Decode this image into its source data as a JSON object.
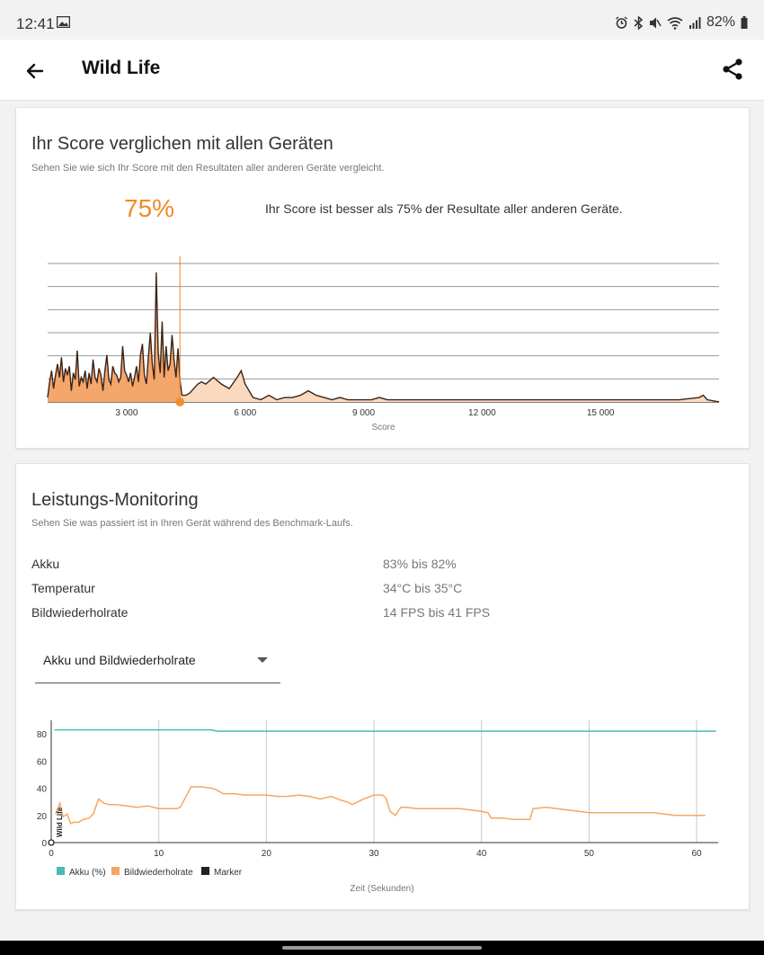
{
  "status_bar": {
    "time": "12:41",
    "battery": "82%"
  },
  "app_bar": {
    "title": "Wild Life"
  },
  "score_card": {
    "title": "Ihr Score verglichen mit allen Geräten",
    "subtitle": "Sehen Sie wie sich Ihr Score mit den Resultaten aller anderen Geräte vergleicht.",
    "percentile": "75%",
    "percentile_text": "Ihr Score ist besser als 75% der Resultate aller anderen Geräte."
  },
  "monitoring_card": {
    "title": "Leistungs-Monitoring",
    "subtitle": "Sehen Sie was passiert ist in Ihren Gerät während des Benchmark-Laufs.",
    "metrics": [
      {
        "label": "Akku",
        "value": "83% bis 82%"
      },
      {
        "label": "Temperatur",
        "value": "34°C bis 35°C"
      },
      {
        "label": "Bildwiederholrate",
        "value": "14 FPS bis 41 FPS"
      }
    ],
    "dropdown": {
      "selected": "Akku und Bildwiederholrate"
    }
  },
  "colors": {
    "accent": "#f08a24",
    "battery_line": "#4bbab5",
    "fps_line": "#f5a762"
  },
  "chart_data": [
    {
      "type": "area",
      "name": "score-distribution",
      "title": "",
      "xlabel": "Score",
      "ylabel": "",
      "xlim": [
        1000,
        18000
      ],
      "xticks": [
        3000,
        6000,
        9000,
        12000,
        15000
      ],
      "xtick_labels": [
        "3 000",
        "6 000",
        "9 000",
        "12 000",
        "15 000"
      ],
      "gridlines": 6,
      "user_score": 4350,
      "x": [
        1000,
        1050,
        1100,
        1150,
        1200,
        1250,
        1300,
        1350,
        1400,
        1450,
        1500,
        1550,
        1600,
        1650,
        1700,
        1750,
        1800,
        1850,
        1900,
        1950,
        2000,
        2050,
        2100,
        2150,
        2200,
        2250,
        2300,
        2350,
        2400,
        2450,
        2500,
        2550,
        2600,
        2650,
        2700,
        2750,
        2800,
        2850,
        2900,
        2950,
        3000,
        3050,
        3100,
        3150,
        3200,
        3250,
        3300,
        3350,
        3400,
        3450,
        3500,
        3550,
        3600,
        3650,
        3700,
        3750,
        3800,
        3850,
        3900,
        3950,
        4000,
        4050,
        4100,
        4150,
        4200,
        4250,
        4300,
        4350,
        4400,
        4500,
        4600,
        4700,
        4800,
        4900,
        5000,
        5200,
        5400,
        5600,
        5800,
        5900,
        6000,
        6200,
        6400,
        6600,
        6700,
        6800,
        7000,
        7200,
        7400,
        7600,
        7800,
        8000,
        8200,
        8400,
        8600,
        8800,
        9000,
        9200,
        9400,
        9600,
        9800,
        10000,
        10500,
        11000,
        11500,
        12000,
        12500,
        13000,
        13500,
        14000,
        14500,
        15000,
        15500,
        16000,
        16500,
        17000,
        17500,
        17600,
        17700,
        18000
      ],
      "y": [
        2,
        9,
        14,
        6,
        12,
        17,
        11,
        20,
        9,
        15,
        12,
        16,
        5,
        13,
        10,
        23,
        7,
        11,
        9,
        14,
        6,
        13,
        8,
        19,
        11,
        9,
        15,
        12,
        5,
        14,
        21,
        10,
        8,
        16,
        13,
        12,
        9,
        11,
        25,
        14,
        12,
        9,
        13,
        7,
        11,
        16,
        9,
        21,
        26,
        12,
        8,
        20,
        31,
        17,
        10,
        58,
        22,
        13,
        36,
        11,
        25,
        14,
        17,
        30,
        19,
        11,
        24,
        10,
        3,
        3,
        4,
        6,
        8,
        9,
        8,
        11,
        8,
        6,
        11,
        14,
        8,
        2,
        1,
        3,
        2,
        1,
        2,
        2,
        3,
        5,
        3,
        2,
        1,
        2,
        1,
        1,
        1,
        1,
        2,
        1,
        1,
        1,
        1,
        1,
        1,
        1,
        1,
        1,
        1,
        1,
        1,
        1,
        1,
        1,
        1,
        1,
        2,
        3,
        1,
        0
      ]
    },
    {
      "type": "line",
      "name": "benchmark-monitoring",
      "title": "",
      "xlabel": "Zeit (Sekunden)",
      "ylabel": "",
      "xlim": [
        0,
        62
      ],
      "ylim": [
        0,
        90
      ],
      "xticks": [
        0,
        10,
        20,
        30,
        40,
        50,
        60
      ],
      "yticks": [
        0,
        20,
        40,
        60,
        80
      ],
      "legend": [
        "Akku (%)",
        "Bildwiederholrate",
        "Marker"
      ],
      "marker_label": "Wild Life",
      "series": [
        {
          "name": "Akku (%)",
          "x": [
            0.3,
            14.8,
            15.5,
            61.8
          ],
          "values": [
            83,
            83,
            82,
            82
          ]
        },
        {
          "name": "Bildwiederholrate",
          "x": [
            0.4,
            0.8,
            1.1,
            1.5,
            1.8,
            2.1,
            2.5,
            3,
            3.5,
            3.9,
            4.4,
            4.9,
            5.4,
            6,
            7,
            8,
            9,
            10,
            11,
            11.5,
            11.7,
            12,
            13,
            14,
            14.9,
            15.3,
            16,
            17,
            18,
            19,
            20,
            21,
            22,
            23,
            24,
            25,
            26,
            27,
            27.5,
            28,
            29,
            30,
            30.8,
            31.1,
            31.5,
            32,
            32.5,
            33,
            34,
            35,
            36,
            37,
            38,
            39,
            40,
            40.6,
            40.9,
            42,
            43,
            44,
            44.5,
            44.8,
            46,
            48,
            50,
            52,
            54,
            56,
            58,
            60,
            60.8
          ],
          "values": [
            21,
            29,
            19,
            21,
            14,
            15,
            15,
            17,
            18,
            21,
            32,
            29,
            28,
            28,
            27,
            26,
            27,
            25,
            25,
            25,
            25,
            26,
            41,
            41,
            40,
            39,
            36,
            36,
            35,
            35,
            35,
            34,
            34,
            35,
            34,
            32,
            34,
            31,
            30,
            28,
            32,
            35,
            35,
            33,
            23,
            20,
            26,
            26,
            25,
            25,
            25,
            25,
            25,
            24,
            23,
            22,
            18,
            18,
            17,
            17,
            17,
            25,
            26,
            24,
            22,
            22,
            22,
            22,
            20,
            20,
            20
          ]
        }
      ]
    }
  ]
}
